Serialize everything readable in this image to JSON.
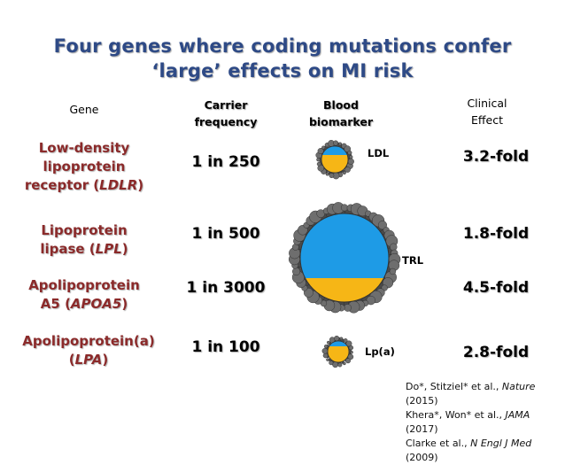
{
  "title": {
    "line1": "Four genes where coding mutations confer",
    "line2": "‘large’ effects on MI risk"
  },
  "colors": {
    "title": "#2e4a86",
    "gene": "#8b2a2a",
    "particle_core_blue": "#1e9be6",
    "particle_core_yellow": "#f6b616",
    "particle_shell": "#555555"
  },
  "headers": {
    "gene": "Gene",
    "carrier_line1": "Carrier",
    "carrier_line2": "frequency",
    "biomarker_line1": "Blood",
    "biomarker_line2": "biomarker",
    "effect_line1": "Clinical",
    "effect_line2": "Effect"
  },
  "rows": [
    {
      "gene_line1": "Low-density",
      "gene_line2": "lipoprotein",
      "gene_line3a": "receptor (",
      "gene_line3b": "LDLR",
      "gene_line3c": ")",
      "frequency": "1 in 250",
      "effect": "3.2-fold"
    },
    {
      "gene_line1": "Lipoprotein",
      "gene_line2a": "lipase (",
      "gene_line2b": "LPL",
      "gene_line2c": ")",
      "frequency": "1 in 500",
      "effect": "1.8-fold"
    },
    {
      "gene_line1": "Apolipoprotein",
      "gene_line2a": "A5 (",
      "gene_line2b": "APOA5",
      "gene_line2c": ")",
      "frequency": "1 in 3000",
      "effect": "4.5-fold"
    },
    {
      "gene_line1": "Apolipoprotein(a)",
      "gene_line2a": "(",
      "gene_line2b": "LPA",
      "gene_line2c": ")",
      "frequency": "1 in 100",
      "effect": "2.8-fold"
    }
  ],
  "particles": {
    "ldl": "LDL",
    "trl": "TRL",
    "lpa": "Lp(a)"
  },
  "references": [
    {
      "authors": "Do*, Stitziel* et al., ",
      "journal": "Nature",
      "year": " (2015)"
    },
    {
      "authors": "Khera*, Won* et al., ",
      "journal": "JAMA",
      "year": " (2017)"
    },
    {
      "authors": "Clarke et al., ",
      "journal": "N Engl J Med",
      "year": " (2009)"
    }
  ]
}
